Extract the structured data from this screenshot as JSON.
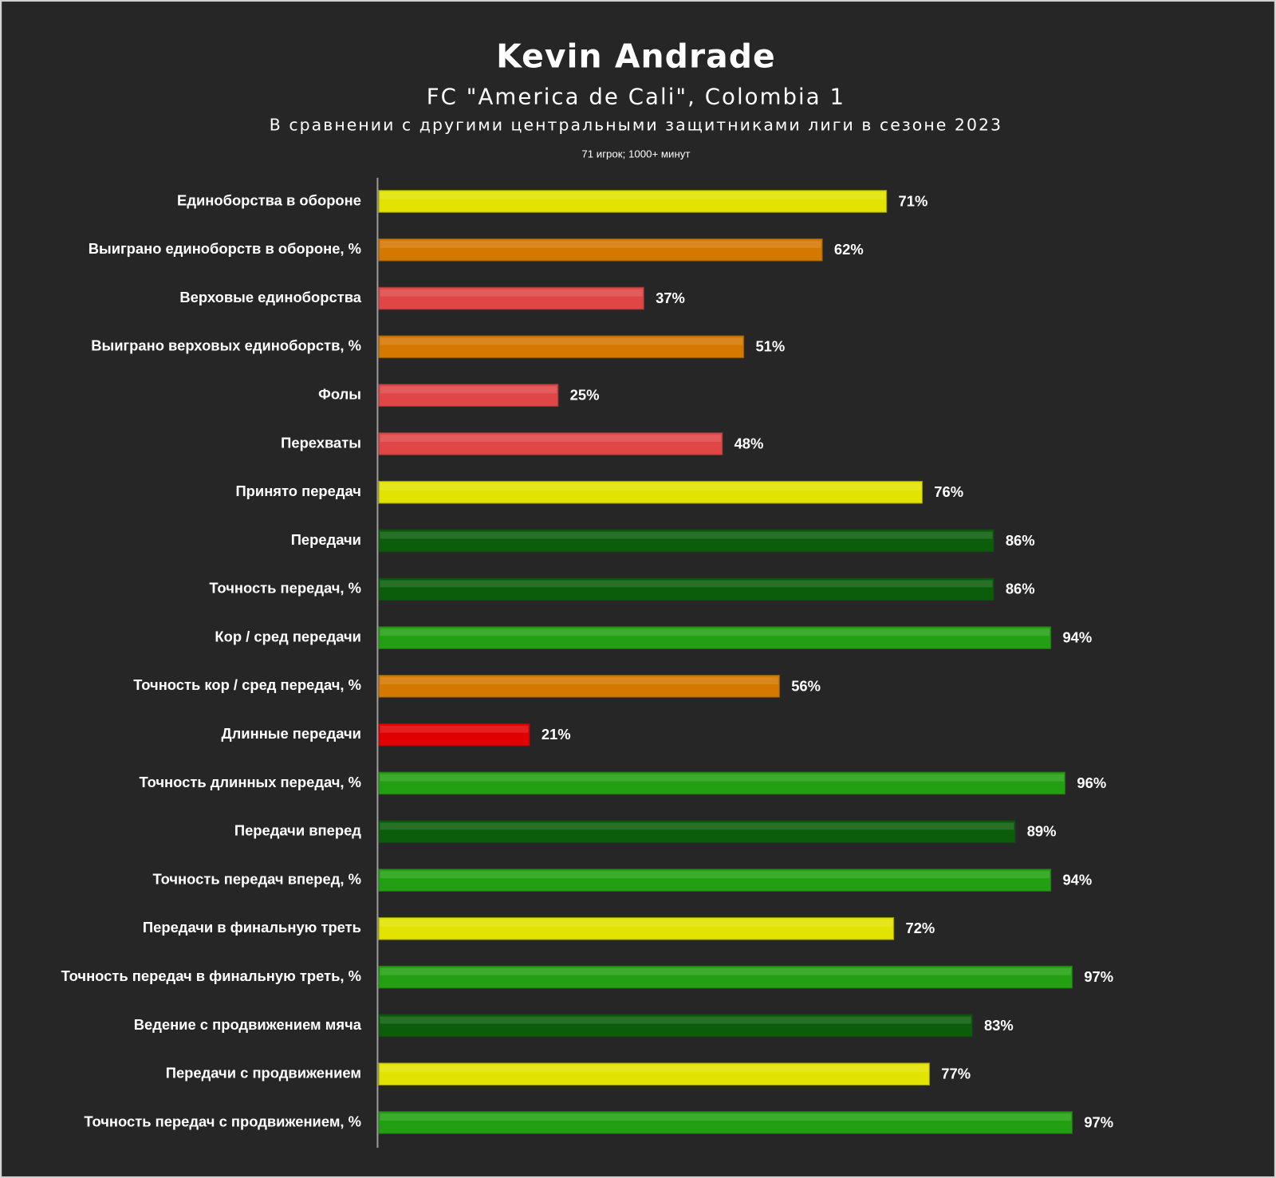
{
  "chart_data": {
    "type": "bar",
    "orientation": "horizontal",
    "title": "Kevin Andrade",
    "subtitle": "FC \"America de Cali\", Colombia 1",
    "caption": "В сравнении с другими центральными защитниками лиги в сезоне 2023",
    "note": "71 игрок; 1000+ минут",
    "categories": [
      "Единоборства в обороне",
      "Выиграно единоборств в обороне, %",
      "Верховые единоборства",
      "Выиграно верховых единоборств, %",
      "Фолы",
      "Перехваты",
      "Принято передач",
      "Передачи",
      "Точность передач, %",
      "Кор / сред передачи",
      "Точность кор / сред передач, %",
      "Длинные передачи",
      "Точность длинных передач, %",
      "Передачи вперед",
      "Точность передач вперед, %",
      "Передачи в финальную треть",
      "Точность передач в финальную треть, %",
      "Ведение с продвижением мяча",
      "Передачи с продвижением",
      "Точность передач с продвижением, %"
    ],
    "values": [
      71,
      62,
      37,
      51,
      25,
      48,
      76,
      86,
      86,
      94,
      56,
      21,
      96,
      89,
      94,
      72,
      97,
      83,
      77,
      97
    ],
    "value_labels": [
      "71%",
      "62%",
      "37%",
      "51%",
      "25%",
      "48%",
      "76%",
      "86%",
      "86%",
      "94%",
      "56%",
      "21%",
      "96%",
      "89%",
      "94%",
      "72%",
      "97%",
      "83%",
      "77%",
      "97%"
    ],
    "colors": [
      "#e3e300",
      "#d47800",
      "#e04646",
      "#d47800",
      "#e04646",
      "#e04646",
      "#e3e300",
      "#0b5c0b",
      "#0b5c0b",
      "#23a011",
      "#d47800",
      "#e00000",
      "#23a011",
      "#0b5c0b",
      "#23a011",
      "#e3e300",
      "#23a011",
      "#0b5c0b",
      "#e3e300",
      "#23a011"
    ],
    "xlim": [
      0,
      100
    ]
  }
}
